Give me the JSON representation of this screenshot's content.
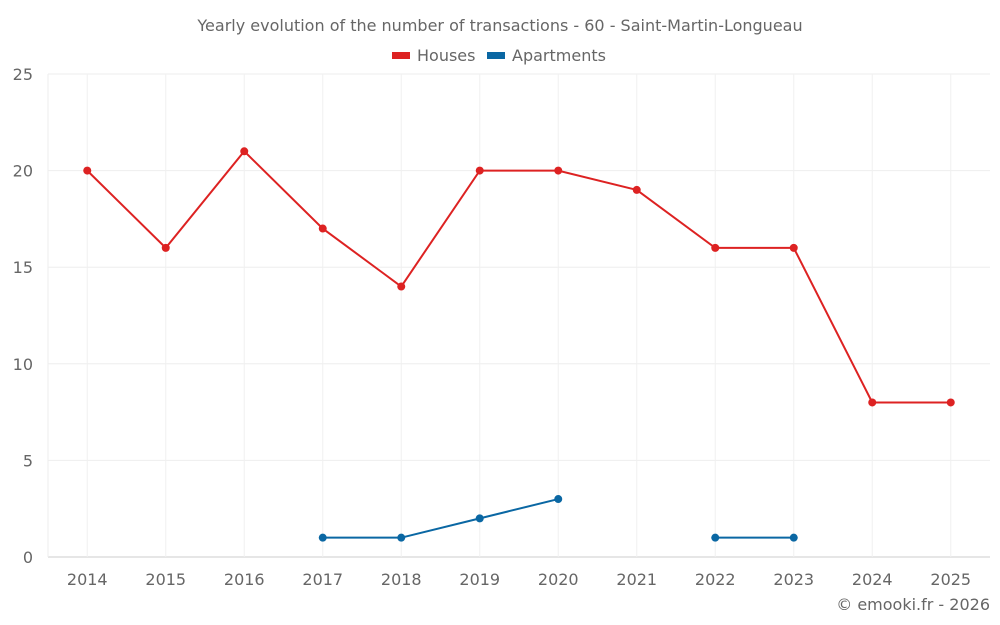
{
  "chart_data": {
    "type": "line",
    "title": "Yearly evolution of the number of transactions - 60 - Saint-Martin-Longueau",
    "xlabel": "",
    "ylabel": "",
    "categories": [
      "2014",
      "2015",
      "2016",
      "2017",
      "2018",
      "2019",
      "2020",
      "2021",
      "2022",
      "2023",
      "2024",
      "2025"
    ],
    "ylim": [
      0,
      25
    ],
    "yticks": [
      0,
      5,
      10,
      15,
      20,
      25
    ],
    "grid": true,
    "legend_position": "top-center",
    "series": [
      {
        "name": "Houses",
        "color": "#dd2222",
        "values": [
          20,
          16,
          21,
          17,
          14,
          20,
          20,
          19,
          16,
          16,
          8,
          8
        ]
      },
      {
        "name": "Apartments",
        "color": "#0a67a3",
        "values": [
          null,
          null,
          null,
          1,
          1,
          2,
          3,
          null,
          1,
          1,
          null,
          null
        ]
      }
    ],
    "credit": "© emooki.fr - 2026"
  }
}
